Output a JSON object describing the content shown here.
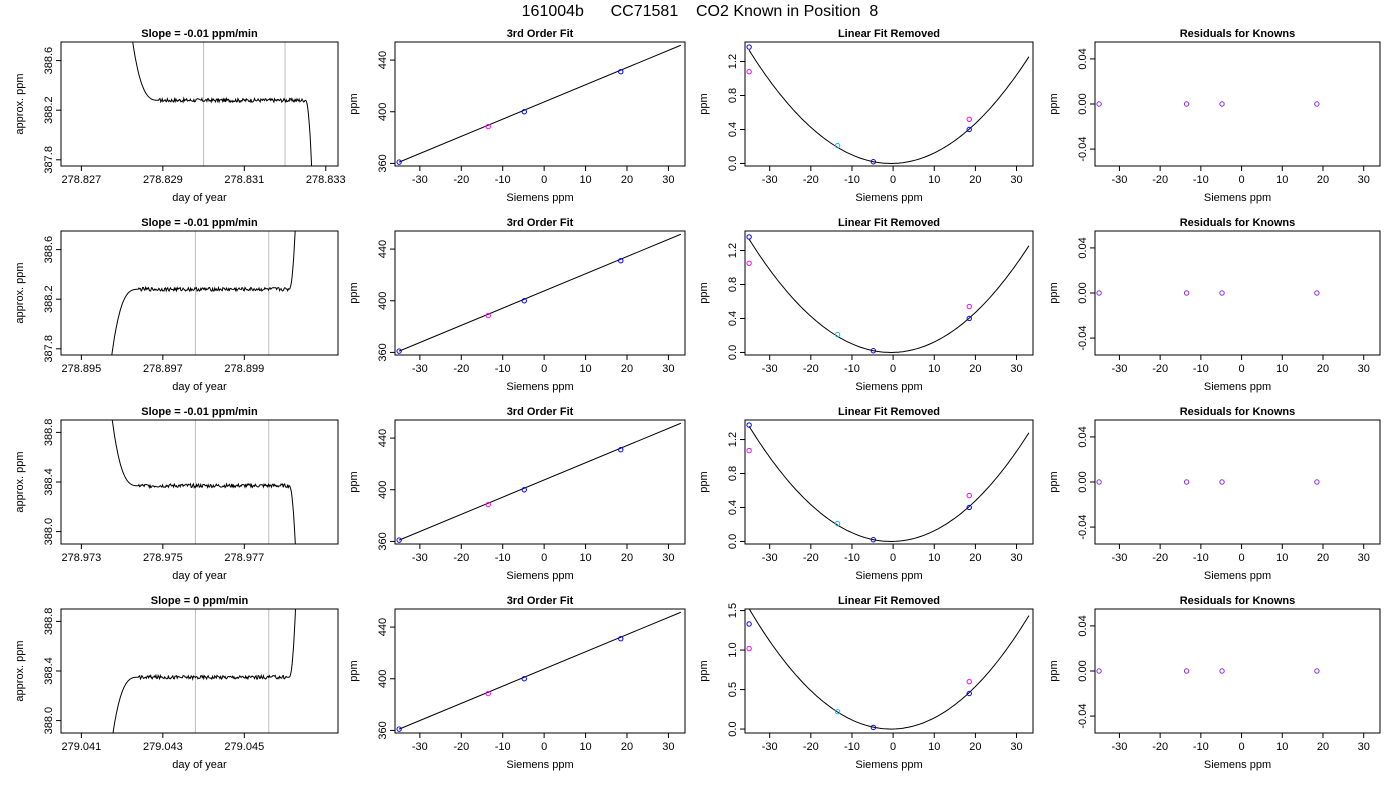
{
  "title": "161004b      CC71581    CO2 Known in Position  8",
  "colors": {
    "line": "#000000",
    "vline": "#bebebe",
    "point_blue": "#0000ff",
    "point_magenta": "#ff00ff",
    "point_cyan": "#00bfff",
    "point_purple": "#8a2be2"
  },
  "chart_data": [
    {
      "type": "line",
      "title": "Slope =  -0.01  ppm/min",
      "xlabel": "day of year",
      "ylabel": "approx. ppm",
      "xlim": [
        278.8265,
        278.8333
      ],
      "ylim": [
        387.75,
        388.75
      ],
      "xticks": [
        "278.827",
        "278.829",
        "278.831",
        "278.833"
      ],
      "xtick_values": [
        278.827,
        278.829,
        278.831,
        278.833
      ],
      "yticks": [
        "387.8",
        "388.2",
        "388.6"
      ],
      "ytick_values": [
        387.8,
        388.2,
        388.6
      ],
      "vlines": [
        278.83,
        278.832
      ],
      "series": {
        "start": 278.8281,
        "end": 278.8327,
        "steady_from": 278.8289,
        "steady_to": 278.8325,
        "level": 388.28,
        "start_value": 389.2,
        "end_value": 387.3
      }
    },
    {
      "type": "scatter",
      "title": "3rd Order Fit",
      "xlabel": "Siemens ppm",
      "ylabel": "ppm",
      "xlim": [
        -36,
        34
      ],
      "ylim": [
        358,
        454
      ],
      "xticks": [
        "-30",
        "-20",
        "-10",
        "0",
        "10",
        "20",
        "30"
      ],
      "xtick_values": [
        -30,
        -20,
        -10,
        0,
        10,
        20,
        30
      ],
      "yticks": [
        "360",
        "400",
        "440"
      ],
      "ytick_values": [
        360,
        400,
        440
      ],
      "fit_line": [
        [
          -35,
          361
        ],
        [
          33,
          451.5
        ]
      ],
      "points": [
        {
          "x": -35,
          "y": 361,
          "color": "point_blue"
        },
        {
          "x": -13.5,
          "y": 388.5,
          "color": "point_magenta"
        },
        {
          "x": -4.8,
          "y": 400,
          "color": "point_blue"
        },
        {
          "x": 18.5,
          "y": 431,
          "color": "point_blue"
        }
      ]
    },
    {
      "type": "scatter",
      "title": "Linear Fit Removed",
      "xlabel": "Siemens ppm",
      "ylabel": "ppm",
      "xlim": [
        -36,
        34
      ],
      "ylim": [
        -0.03,
        1.43
      ],
      "xticks": [
        "-30",
        "-20",
        "-10",
        "0",
        "10",
        "20",
        "30"
      ],
      "xtick_values": [
        -30,
        -20,
        -10,
        0,
        10,
        20,
        30
      ],
      "yticks": [
        "0.0",
        "0.4",
        "0.8",
        "1.2"
      ],
      "ytick_values": [
        0.0,
        0.4,
        0.8,
        1.2
      ],
      "curve": {
        "a": 0.00112,
        "vertex": -0.5,
        "c": 0.0,
        "from": -35,
        "to": 33
      },
      "points": [
        {
          "x": -35,
          "y": 1.37,
          "color": "point_blue"
        },
        {
          "x": -35,
          "y": 1.08,
          "color": "point_magenta"
        },
        {
          "x": -13.5,
          "y": 0.21,
          "color": "point_cyan"
        },
        {
          "x": -4.8,
          "y": 0.02,
          "color": "point_blue"
        },
        {
          "x": 18.5,
          "y": 0.4,
          "color": "point_blue"
        },
        {
          "x": 18.5,
          "y": 0.52,
          "color": "point_magenta"
        }
      ]
    },
    {
      "type": "scatter",
      "title": "Residuals for Knowns",
      "xlabel": "Siemens ppm",
      "ylabel": "ppm",
      "xlim": [
        -36,
        34
      ],
      "ylim": [
        -0.055,
        0.055
      ],
      "xticks": [
        "-30",
        "-20",
        "-10",
        "0",
        "10",
        "20",
        "30"
      ],
      "xtick_values": [
        -30,
        -20,
        -10,
        0,
        10,
        20,
        30
      ],
      "yticks": [
        "-0.04",
        "0.00",
        "0.04"
      ],
      "ytick_values": [
        -0.04,
        0.0,
        0.04
      ],
      "points": [
        {
          "x": -35,
          "y": 0,
          "color": "point_purple"
        },
        {
          "x": -13.5,
          "y": 0,
          "color": "point_purple"
        },
        {
          "x": -4.8,
          "y": 0,
          "color": "point_purple"
        },
        {
          "x": 18.5,
          "y": 0,
          "color": "point_purple"
        }
      ]
    },
    {
      "type": "line",
      "title": "Slope =  -0.01  ppm/min",
      "xlabel": "day of year",
      "ylabel": "approx. ppm",
      "xlim": [
        278.8945,
        278.9013
      ],
      "ylim": [
        387.75,
        388.75
      ],
      "xticks": [
        "278.895",
        "278.897",
        "278.899"
      ],
      "xtick_values": [
        278.895,
        278.897,
        278.899
      ],
      "yticks": [
        "387.8",
        "388.2",
        "388.6"
      ],
      "ytick_values": [
        387.8,
        388.2,
        388.6
      ],
      "vlines": [
        278.8978,
        278.8996
      ],
      "series": {
        "start": 278.8956,
        "end": 278.9003,
        "steady_from": 278.8964,
        "steady_to": 278.9001,
        "level": 388.28,
        "start_value": 387.3,
        "end_value": 389.2
      }
    },
    {
      "type": "scatter",
      "title": "3rd Order Fit",
      "xlabel": "Siemens ppm",
      "ylabel": "ppm",
      "xlim": [
        -36,
        34
      ],
      "ylim": [
        358,
        454
      ],
      "xticks": [
        "-30",
        "-20",
        "-10",
        "0",
        "10",
        "20",
        "30"
      ],
      "xtick_values": [
        -30,
        -20,
        -10,
        0,
        10,
        20,
        30
      ],
      "yticks": [
        "360",
        "400",
        "440"
      ],
      "ytick_values": [
        360,
        400,
        440
      ],
      "fit_line": [
        [
          -35,
          361
        ],
        [
          33,
          451.5
        ]
      ],
      "points": [
        {
          "x": -35,
          "y": 361,
          "color": "point_blue"
        },
        {
          "x": -13.5,
          "y": 388.5,
          "color": "point_magenta"
        },
        {
          "x": -4.8,
          "y": 400,
          "color": "point_blue"
        },
        {
          "x": 18.5,
          "y": 431,
          "color": "point_blue"
        }
      ]
    },
    {
      "type": "scatter",
      "title": "Linear Fit Removed",
      "xlabel": "Siemens ppm",
      "ylabel": "ppm",
      "xlim": [
        -36,
        34
      ],
      "ylim": [
        -0.03,
        1.43
      ],
      "xticks": [
        "-30",
        "-20",
        "-10",
        "0",
        "10",
        "20",
        "30"
      ],
      "xtick_values": [
        -30,
        -20,
        -10,
        0,
        10,
        20,
        30
      ],
      "yticks": [
        "0.0",
        "0.4",
        "0.8",
        "1.2"
      ],
      "ytick_values": [
        0.0,
        0.4,
        0.8,
        1.2
      ],
      "curve": {
        "a": 0.00112,
        "vertex": -0.5,
        "c": 0.0,
        "from": -35,
        "to": 33
      },
      "points": [
        {
          "x": -35,
          "y": 1.36,
          "color": "point_blue"
        },
        {
          "x": -35,
          "y": 1.05,
          "color": "point_magenta"
        },
        {
          "x": -13.5,
          "y": 0.21,
          "color": "point_cyan"
        },
        {
          "x": -4.8,
          "y": 0.02,
          "color": "point_blue"
        },
        {
          "x": 18.5,
          "y": 0.4,
          "color": "point_blue"
        },
        {
          "x": 18.5,
          "y": 0.54,
          "color": "point_magenta"
        }
      ]
    },
    {
      "type": "scatter",
      "title": "Residuals for Knowns",
      "xlabel": "Siemens ppm",
      "ylabel": "ppm",
      "xlim": [
        -36,
        34
      ],
      "ylim": [
        -0.055,
        0.055
      ],
      "xticks": [
        "-30",
        "-20",
        "-10",
        "0",
        "10",
        "20",
        "30"
      ],
      "xtick_values": [
        -30,
        -20,
        -10,
        0,
        10,
        20,
        30
      ],
      "yticks": [
        "-0.04",
        "0.00",
        "0.04"
      ],
      "ytick_values": [
        -0.04,
        0.0,
        0.04
      ],
      "points": [
        {
          "x": -35,
          "y": 0,
          "color": "point_purple"
        },
        {
          "x": -13.5,
          "y": 0,
          "color": "point_purple"
        },
        {
          "x": -4.8,
          "y": 0,
          "color": "point_purple"
        },
        {
          "x": 18.5,
          "y": 0,
          "color": "point_purple"
        }
      ]
    },
    {
      "type": "line",
      "title": "Slope =  -0.01  ppm/min",
      "xlabel": "day of year",
      "ylabel": "approx. ppm",
      "xlim": [
        278.9725,
        278.9793
      ],
      "ylim": [
        387.9,
        388.9
      ],
      "xticks": [
        "278.973",
        "278.975",
        "278.977"
      ],
      "xtick_values": [
        278.973,
        278.975,
        278.977
      ],
      "yticks": [
        "388.0",
        "388.4",
        "388.8"
      ],
      "ytick_values": [
        388.0,
        388.4,
        388.8
      ],
      "vlines": [
        278.9758,
        278.9776
      ],
      "series": {
        "start": 278.9736,
        "end": 278.9783,
        "steady_from": 278.9744,
        "steady_to": 278.9781,
        "level": 388.37,
        "start_value": 389.4,
        "end_value": 387.5
      }
    },
    {
      "type": "scatter",
      "title": "3rd Order Fit",
      "xlabel": "Siemens ppm",
      "ylabel": "ppm",
      "xlim": [
        -36,
        34
      ],
      "ylim": [
        358,
        454
      ],
      "xticks": [
        "-30",
        "-20",
        "-10",
        "0",
        "10",
        "20",
        "30"
      ],
      "xtick_values": [
        -30,
        -20,
        -10,
        0,
        10,
        20,
        30
      ],
      "yticks": [
        "360",
        "400",
        "440"
      ],
      "ytick_values": [
        360,
        400,
        440
      ],
      "fit_line": [
        [
          -35,
          361
        ],
        [
          33,
          451.5
        ]
      ],
      "points": [
        {
          "x": -35,
          "y": 361,
          "color": "point_blue"
        },
        {
          "x": -13.5,
          "y": 388.5,
          "color": "point_magenta"
        },
        {
          "x": -4.8,
          "y": 400,
          "color": "point_blue"
        },
        {
          "x": 18.5,
          "y": 431,
          "color": "point_blue"
        }
      ]
    },
    {
      "type": "scatter",
      "title": "Linear Fit Removed",
      "xlabel": "Siemens ppm",
      "ylabel": "ppm",
      "xlim": [
        -36,
        34
      ],
      "ylim": [
        -0.03,
        1.43
      ],
      "xticks": [
        "-30",
        "-20",
        "-10",
        "0",
        "10",
        "20",
        "30"
      ],
      "xtick_values": [
        -30,
        -20,
        -10,
        0,
        10,
        20,
        30
      ],
      "yticks": [
        "0.0",
        "0.4",
        "0.8",
        "1.2"
      ],
      "ytick_values": [
        0.0,
        0.4,
        0.8,
        1.2
      ],
      "curve": {
        "a": 0.00114,
        "vertex": -0.5,
        "c": 0.0,
        "from": -35,
        "to": 33
      },
      "points": [
        {
          "x": -35,
          "y": 1.37,
          "color": "point_blue"
        },
        {
          "x": -35,
          "y": 1.07,
          "color": "point_magenta"
        },
        {
          "x": -13.5,
          "y": 0.21,
          "color": "point_cyan"
        },
        {
          "x": -4.8,
          "y": 0.02,
          "color": "point_blue"
        },
        {
          "x": 18.5,
          "y": 0.4,
          "color": "point_blue"
        },
        {
          "x": 18.5,
          "y": 0.54,
          "color": "point_magenta"
        }
      ]
    },
    {
      "type": "scatter",
      "title": "Residuals for Knowns",
      "xlabel": "Siemens ppm",
      "ylabel": "ppm",
      "xlim": [
        -36,
        34
      ],
      "ylim": [
        -0.055,
        0.055
      ],
      "xticks": [
        "-30",
        "-20",
        "-10",
        "0",
        "10",
        "20",
        "30"
      ],
      "xtick_values": [
        -30,
        -20,
        -10,
        0,
        10,
        20,
        30
      ],
      "yticks": [
        "-0.04",
        "0.00",
        "0.04"
      ],
      "ytick_values": [
        -0.04,
        0.0,
        0.04
      ],
      "points": [
        {
          "x": -35,
          "y": 0,
          "color": "point_purple"
        },
        {
          "x": -13.5,
          "y": 0,
          "color": "point_purple"
        },
        {
          "x": -4.8,
          "y": 0,
          "color": "point_purple"
        },
        {
          "x": 18.5,
          "y": 0,
          "color": "point_purple"
        }
      ]
    },
    {
      "type": "line",
      "title": "Slope =  0  ppm/min",
      "xlabel": "day of year",
      "ylabel": "approx. ppm",
      "xlim": [
        279.0405,
        279.0473
      ],
      "ylim": [
        387.9,
        388.9
      ],
      "xticks": [
        "279.041",
        "279.043",
        "279.045"
      ],
      "xtick_values": [
        279.041,
        279.043,
        279.045
      ],
      "yticks": [
        "388.0",
        "388.4",
        "388.8"
      ],
      "ytick_values": [
        388.0,
        388.4,
        388.8
      ],
      "vlines": [
        279.0438,
        279.0456
      ],
      "series": {
        "start": 279.0416,
        "end": 279.0463,
        "steady_from": 279.0424,
        "steady_to": 279.0461,
        "level": 388.35,
        "start_value": 387.4,
        "end_value": 389.3
      }
    },
    {
      "type": "scatter",
      "title": "3rd Order Fit",
      "xlabel": "Siemens ppm",
      "ylabel": "ppm",
      "xlim": [
        -36,
        34
      ],
      "ylim": [
        358,
        454
      ],
      "xticks": [
        "-30",
        "-20",
        "-10",
        "0",
        "10",
        "20",
        "30"
      ],
      "xtick_values": [
        -30,
        -20,
        -10,
        0,
        10,
        20,
        30
      ],
      "yticks": [
        "360",
        "400",
        "440"
      ],
      "ytick_values": [
        360,
        400,
        440
      ],
      "fit_line": [
        [
          -35,
          361
        ],
        [
          33,
          451.5
        ]
      ],
      "points": [
        {
          "x": -35,
          "y": 361,
          "color": "point_blue"
        },
        {
          "x": -13.5,
          "y": 388.5,
          "color": "point_magenta"
        },
        {
          "x": -4.8,
          "y": 400,
          "color": "point_blue"
        },
        {
          "x": 18.5,
          "y": 431,
          "color": "point_blue"
        }
      ]
    },
    {
      "type": "scatter",
      "title": "Linear Fit Removed",
      "xlabel": "Siemens ppm",
      "ylabel": "ppm",
      "xlim": [
        -36,
        34
      ],
      "ylim": [
        -0.05,
        1.52
      ],
      "xticks": [
        "-30",
        "-20",
        "-10",
        "0",
        "10",
        "20",
        "30"
      ],
      "xtick_values": [
        -30,
        -20,
        -10,
        0,
        10,
        20,
        30
      ],
      "yticks": [
        "0.0",
        "0.5",
        "1.0",
        "1.5"
      ],
      "ytick_values": [
        0.0,
        0.5,
        1.0,
        1.5
      ],
      "curve": {
        "a": 0.00128,
        "vertex": -0.5,
        "c": 0.0,
        "from": -35,
        "to": 33
      },
      "points": [
        {
          "x": -35,
          "y": 1.33,
          "color": "point_blue"
        },
        {
          "x": -35,
          "y": 1.02,
          "color": "point_magenta"
        },
        {
          "x": -13.5,
          "y": 0.22,
          "color": "point_cyan"
        },
        {
          "x": -4.8,
          "y": 0.02,
          "color": "point_blue"
        },
        {
          "x": 18.5,
          "y": 0.45,
          "color": "point_blue"
        },
        {
          "x": 18.5,
          "y": 0.6,
          "color": "point_magenta"
        }
      ]
    },
    {
      "type": "scatter",
      "title": "Residuals for Knowns",
      "xlabel": "Siemens ppm",
      "ylabel": "ppm",
      "xlim": [
        -36,
        34
      ],
      "ylim": [
        -0.055,
        0.055
      ],
      "xticks": [
        "-30",
        "-20",
        "-10",
        "0",
        "10",
        "20",
        "30"
      ],
      "xtick_values": [
        -30,
        -20,
        -10,
        0,
        10,
        20,
        30
      ],
      "yticks": [
        "-0.04",
        "0.00",
        "0.04"
      ],
      "ytick_values": [
        -0.04,
        0.0,
        0.04
      ],
      "points": [
        {
          "x": -35,
          "y": 0,
          "color": "point_purple"
        },
        {
          "x": -13.5,
          "y": 0,
          "color": "point_purple"
        },
        {
          "x": -4.8,
          "y": 0,
          "color": "point_purple"
        },
        {
          "x": 18.5,
          "y": 0,
          "color": "point_purple"
        }
      ]
    }
  ]
}
